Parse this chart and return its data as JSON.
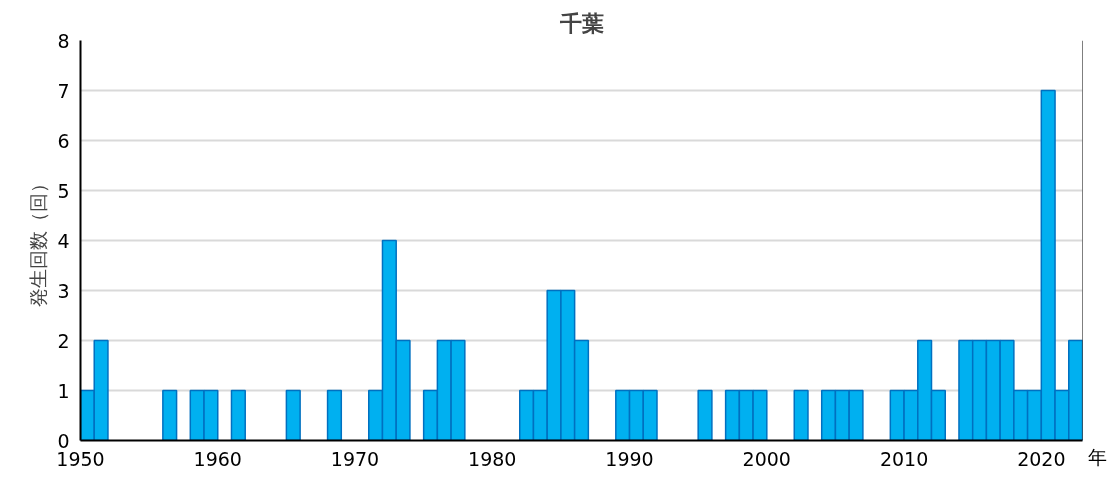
{
  "chart_data": {
    "type": "histogram",
    "title": "千葉",
    "xlabel": "年",
    "ylabel": "発生回数（回）",
    "bins": [
      1950,
      1951,
      1952,
      1953,
      1954,
      1955,
      1956,
      1957,
      1958,
      1959,
      1960,
      1961,
      1962,
      1963,
      1964,
      1965,
      1966,
      1967,
      1968,
      1969,
      1970,
      1971,
      1972,
      1973,
      1974,
      1975,
      1976,
      1977,
      1978,
      1979,
      1980,
      1981,
      1982,
      1983,
      1984,
      1985,
      1986,
      1987,
      1988,
      1989,
      1990,
      1991,
      1992,
      1993,
      1994,
      1995,
      1996,
      1997,
      1998,
      1999,
      2000,
      2001,
      2002,
      2003,
      2004,
      2005,
      2006,
      2007,
      2008,
      2009,
      2010,
      2011,
      2012,
      2013,
      2014,
      2015,
      2016,
      2017,
      2018,
      2019,
      2020,
      2021,
      2022,
      2023
    ],
    "values": [
      1,
      2,
      0,
      0,
      0,
      0,
      1,
      0,
      1,
      1,
      0,
      1,
      0,
      0,
      0,
      1,
      0,
      0,
      1,
      0,
      0,
      1,
      4,
      2,
      0,
      1,
      2,
      2,
      0,
      0,
      0,
      0,
      1,
      1,
      3,
      3,
      2,
      0,
      0,
      1,
      1,
      1,
      0,
      0,
      0,
      1,
      0,
      1,
      1,
      1,
      0,
      0,
      1,
      0,
      1,
      1,
      1,
      0,
      0,
      1,
      1,
      2,
      1,
      0,
      2,
      2,
      2,
      2,
      1,
      1,
      7,
      1,
      2
    ],
    "color": "#00b0f0",
    "xlim": [
      1950,
      2023
    ],
    "xticks": [
      1950,
      1960,
      1970,
      1980,
      1990,
      2000,
      2010,
      2020
    ],
    "ylim": [
      0,
      8
    ],
    "yticks": [
      0,
      1,
      2,
      3,
      4,
      5,
      6,
      7,
      8
    ],
    "grid": "y"
  }
}
